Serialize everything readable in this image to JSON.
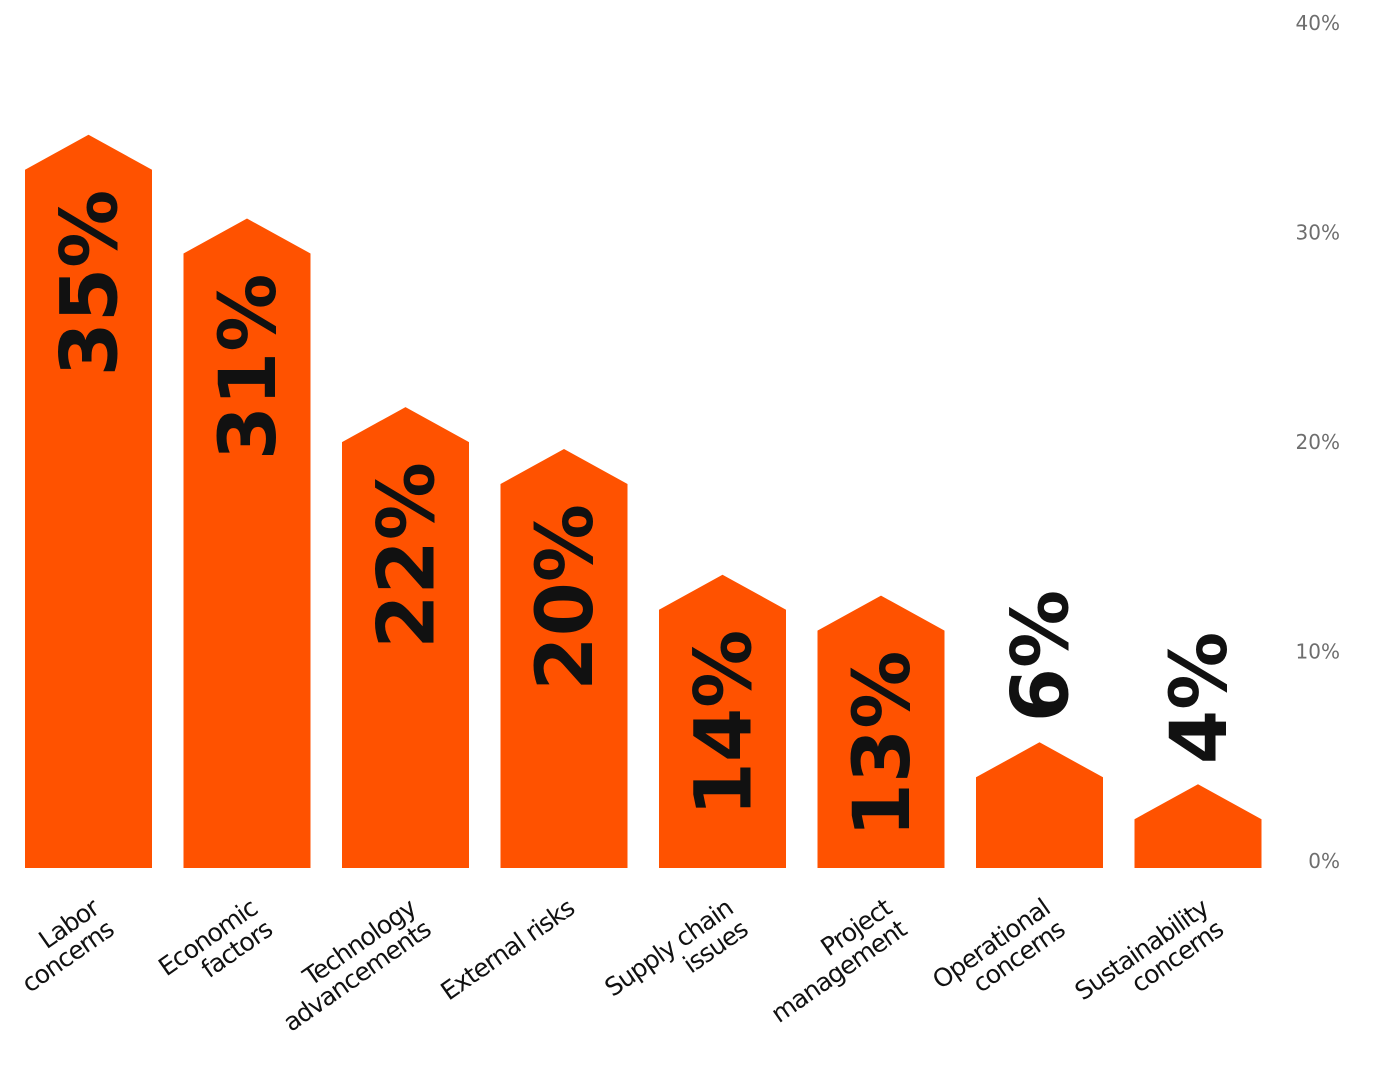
{
  "chart_data": {
    "type": "bar",
    "title": "",
    "xlabel": "",
    "ylabel": "",
    "categories": [
      [
        "Labor",
        "concerns"
      ],
      [
        "Economic",
        "factors"
      ],
      [
        "Technology",
        "advancements"
      ],
      [
        "External risks"
      ],
      [
        "Supply chain",
        "issues"
      ],
      [
        "Project",
        "management"
      ],
      [
        "Operational",
        "concerns"
      ],
      [
        "Sustainability",
        "concerns"
      ]
    ],
    "values": [
      35,
      31,
      22,
      20,
      14,
      13,
      6,
      4
    ],
    "value_labels": [
      "35%",
      "31%",
      "22%",
      "20%",
      "14%",
      "13%",
      "6%",
      "4%"
    ],
    "ylim": [
      0,
      40
    ],
    "y_ticks": [
      0,
      10,
      20,
      30,
      40
    ],
    "y_tick_labels": [
      "0%",
      "10%",
      "20%",
      "30%",
      "40%"
    ],
    "y_axis_side": "right",
    "bar_shape": "house",
    "grid": false,
    "legend": "none",
    "colors": {
      "bar": "#ff5200",
      "value_text": "#111111",
      "tick_text": "#6e6e6e",
      "category_text": "#111111"
    }
  }
}
